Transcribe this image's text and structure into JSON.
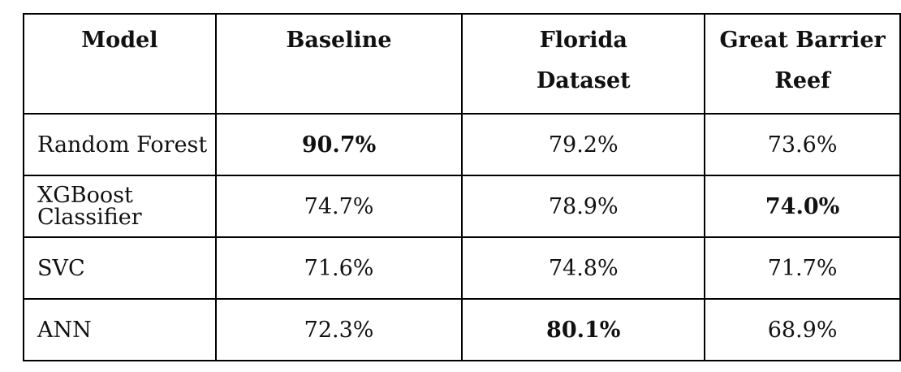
{
  "table": {
    "headers": [
      "Model",
      "Baseline",
      "Florida Dataset",
      "Great Barrier Reef"
    ],
    "rows": [
      {
        "model": "Random Forest",
        "values": [
          "90.7%",
          "79.2%",
          "73.6%"
        ],
        "bold": [
          true,
          false,
          false
        ]
      },
      {
        "model": "XGBoost Classifier",
        "values": [
          "74.7%",
          "78.9%",
          "74.0%"
        ],
        "bold": [
          false,
          false,
          true
        ]
      },
      {
        "model": "SVC",
        "values": [
          "71.6%",
          "74.8%",
          "71.7%"
        ],
        "bold": [
          false,
          false,
          false
        ]
      },
      {
        "model": "ANN",
        "values": [
          "72.3%",
          "80.1%",
          "68.9%"
        ],
        "bold": [
          false,
          true,
          false
        ]
      }
    ]
  }
}
